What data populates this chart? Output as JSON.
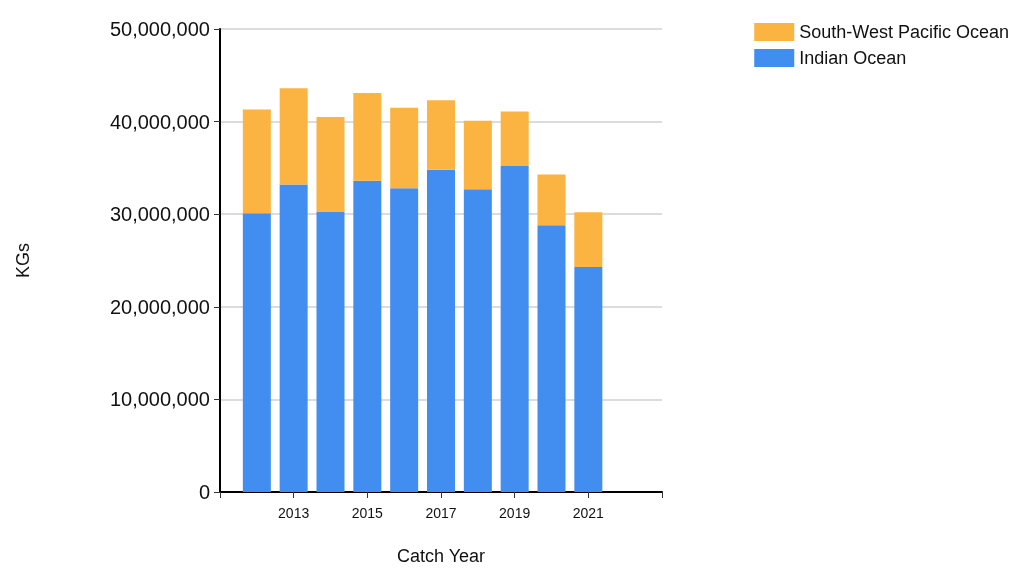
{
  "chart_data": {
    "type": "bar",
    "stacked": true,
    "xlabel": "Catch Year",
    "ylabel": "KGs",
    "x": [
      2012,
      2013,
      2014,
      2015,
      2016,
      2017,
      2018,
      2019,
      2020,
      2021
    ],
    "series": [
      {
        "name": "Indian Ocean",
        "color": "#428ef0",
        "values": [
          30100000,
          33200000,
          30300000,
          33600000,
          32800000,
          34800000,
          32700000,
          35200000,
          28800000,
          24300000
        ]
      },
      {
        "name": "South-West Pacific Ocean",
        "color": "#fbb441",
        "values": [
          11200000,
          10400000,
          10200000,
          9500000,
          8700000,
          7500000,
          7400000,
          5900000,
          5500000,
          5900000
        ]
      }
    ],
    "xlim": [
      2011,
      2023
    ],
    "xticks": [
      {
        "value": 2011,
        "label": null
      },
      2013,
      2015,
      2017,
      2019,
      2021,
      {
        "value": 2023,
        "label": null
      }
    ],
    "ylim": [
      0,
      50000000
    ],
    "yticks": [
      0,
      {
        "value": 10000000,
        "label": "10,000,000"
      },
      {
        "value": 20000000,
        "label": "20,000,000"
      },
      {
        "value": 30000000,
        "label": "30,000,000"
      },
      {
        "value": 40000000,
        "label": "40,000,000"
      },
      {
        "value": 50000000,
        "label": "50,000,000"
      }
    ],
    "grid": "y",
    "legend": "top right"
  }
}
